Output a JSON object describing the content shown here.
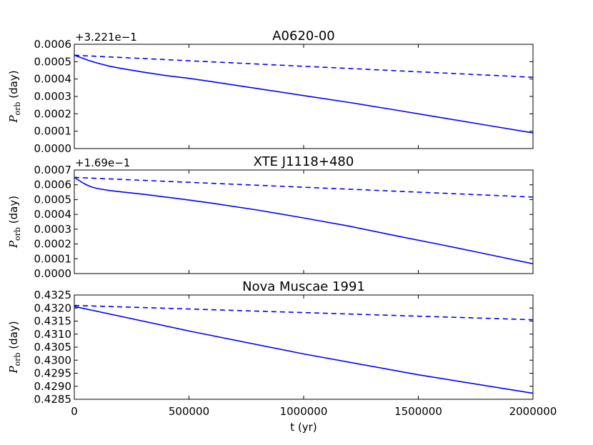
{
  "chart_data": [
    {
      "type": "line",
      "title": "A0620-00",
      "offset_text": "+3.221e−1",
      "xlabel": "",
      "ylabel": {
        "symbol": "P",
        "subscript": "orb",
        "unit": "(day)"
      },
      "xlim": [
        0,
        2000000
      ],
      "ylim": [
        0.0,
        0.0006
      ],
      "yticks": [
        "0.0000",
        "0.0001",
        "0.0002",
        "0.0003",
        "0.0004",
        "0.0005",
        "0.0006"
      ],
      "xticks": [],
      "grid": false,
      "color": "#0000ff",
      "series": [
        {
          "style": "solid",
          "x": [
            0,
            30000,
            60000,
            100000,
            150000,
            200000,
            300000,
            400000,
            500000,
            600000,
            800000,
            1000000,
            1200000,
            1400000,
            1600000,
            1800000,
            2000000
          ],
          "y": [
            0.000537,
            0.000523,
            0.000508,
            0.000492,
            0.000475,
            0.000462,
            0.00044,
            0.00042,
            0.000404,
            0.000385,
            0.000345,
            0.000305,
            0.000265,
            0.000222,
            0.000178,
            0.000134,
            9e-05
          ]
        },
        {
          "style": "dashed",
          "x": [
            0,
            2000000
          ],
          "y": [
            0.000537,
            0.00041
          ]
        }
      ]
    },
    {
      "type": "line",
      "title": "XTE J1118+480",
      "offset_text": "+1.69e−1",
      "xlabel": "",
      "ylabel": {
        "symbol": "P",
        "subscript": "orb",
        "unit": "(day)"
      },
      "xlim": [
        0,
        2000000
      ],
      "ylim": [
        0.0,
        0.0007
      ],
      "yticks": [
        "0.0000",
        "0.0001",
        "0.0002",
        "0.0003",
        "0.0004",
        "0.0005",
        "0.0006",
        "0.0007"
      ],
      "xticks": [],
      "grid": false,
      "color": "#0000ff",
      "series": [
        {
          "style": "solid",
          "x": [
            0,
            20000,
            40000,
            60000,
            80000,
            100000,
            150000,
            200000,
            300000,
            400000,
            500000,
            600000,
            800000,
            1000000,
            1200000,
            1400000,
            1600000,
            1800000,
            2000000
          ],
          "y": [
            0.00065,
            0.00063,
            0.00061,
            0.000595,
            0.000583,
            0.000575,
            0.000562,
            0.000553,
            0.000536,
            0.000517,
            0.000497,
            0.000476,
            0.000429,
            0.000376,
            0.00032,
            0.000256,
            0.000195,
            0.000131,
            6.6e-05
          ]
        },
        {
          "style": "dashed",
          "x": [
            0,
            2000000
          ],
          "y": [
            0.00065,
            0.000517
          ]
        }
      ]
    },
    {
      "type": "line",
      "title": "Nova Muscae 1991",
      "offset_text": "",
      "xlabel": "t (yr)",
      "ylabel": {
        "symbol": "P",
        "subscript": "orb",
        "unit": "(day)"
      },
      "xlim": [
        0,
        2000000
      ],
      "ylim": [
        0.4285,
        0.4325
      ],
      "yticks": [
        "0.4285",
        "0.4290",
        "0.4295",
        "0.4300",
        "0.4305",
        "0.4310",
        "0.4315",
        "0.4320",
        "0.4325"
      ],
      "xticks": [
        "0",
        "500000",
        "1000000",
        "1500000",
        "2000000"
      ],
      "grid": false,
      "color": "#0000ff",
      "series": [
        {
          "style": "solid",
          "x": [
            0,
            500000,
            1000000,
            1500000,
            2000000
          ],
          "y": [
            0.43206,
            0.43112,
            0.43024,
            0.42944,
            0.42873
          ]
        },
        {
          "style": "dashed",
          "x": [
            0,
            2000000
          ],
          "y": [
            0.4321,
            0.43155
          ]
        }
      ]
    }
  ]
}
